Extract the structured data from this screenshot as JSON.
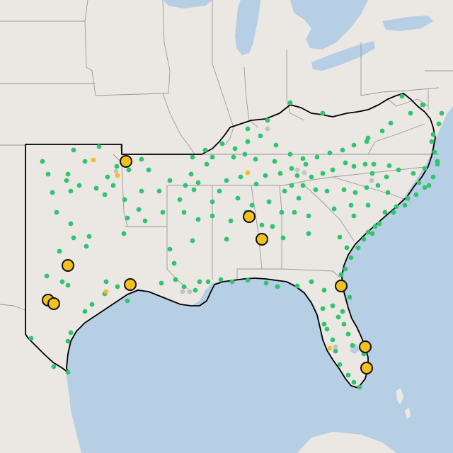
{
  "map": {
    "colors": {
      "water": "#b6cfe4",
      "land": "#ebe7e3",
      "state_border": "#9a9a9a",
      "region_outline": "#000000",
      "site_green": "#2fc56f",
      "site_gray": "#c2c2c2",
      "site_small_yellow": "#f2c01e",
      "site_large_yellow": "#f3c11e",
      "marker_stroke": "#111111"
    },
    "legend": null,
    "marker_categories": [
      {
        "name": "green-site",
        "color": "#2fc56f",
        "count_visible": 210
      },
      {
        "name": "gray-site",
        "color": "#c2c2c2",
        "count_visible": 8
      },
      {
        "name": "small-yellow-site",
        "color": "#f2c01e",
        "count_visible": 4
      },
      {
        "name": "large-yellow-site",
        "color": "#f3c11e",
        "count_visible": 11
      }
    ]
  }
}
